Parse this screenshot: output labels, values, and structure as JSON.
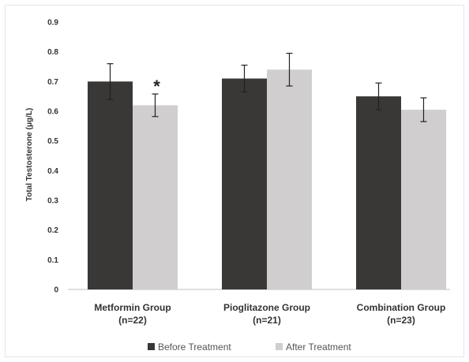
{
  "chart_data": {
    "type": "bar",
    "title": "",
    "ylabel": "Total Testosterone (μg/L)",
    "xlabel": "",
    "ylim": [
      0,
      0.9
    ],
    "yticks": [
      "0",
      "0.1",
      "0.2",
      "0.3",
      "0.4",
      "0.5",
      "0.6",
      "0.7",
      "0.8",
      "0.9"
    ],
    "grid": false,
    "legend_placement": "bottom",
    "categories": [
      {
        "line1": "Metformin Group",
        "line2": "(n=22)"
      },
      {
        "line1": "Pioglitazone Group",
        "line2": "(n=21)"
      },
      {
        "line1": "Combination Group",
        "line2": "(n=23)"
      }
    ],
    "series": [
      {
        "name": "Before Treatment",
        "color": "#3a3836",
        "values": [
          0.7,
          0.71,
          0.65
        ],
        "errors": [
          0.06,
          0.045,
          0.045
        ]
      },
      {
        "name": "After Treatment",
        "color": "#d0cecf",
        "values": [
          0.62,
          0.74,
          0.605
        ],
        "errors": [
          0.038,
          0.055,
          0.04
        ]
      }
    ],
    "annotations": [
      {
        "text": "*",
        "category_index": 0,
        "series_index": 1
      }
    ]
  }
}
